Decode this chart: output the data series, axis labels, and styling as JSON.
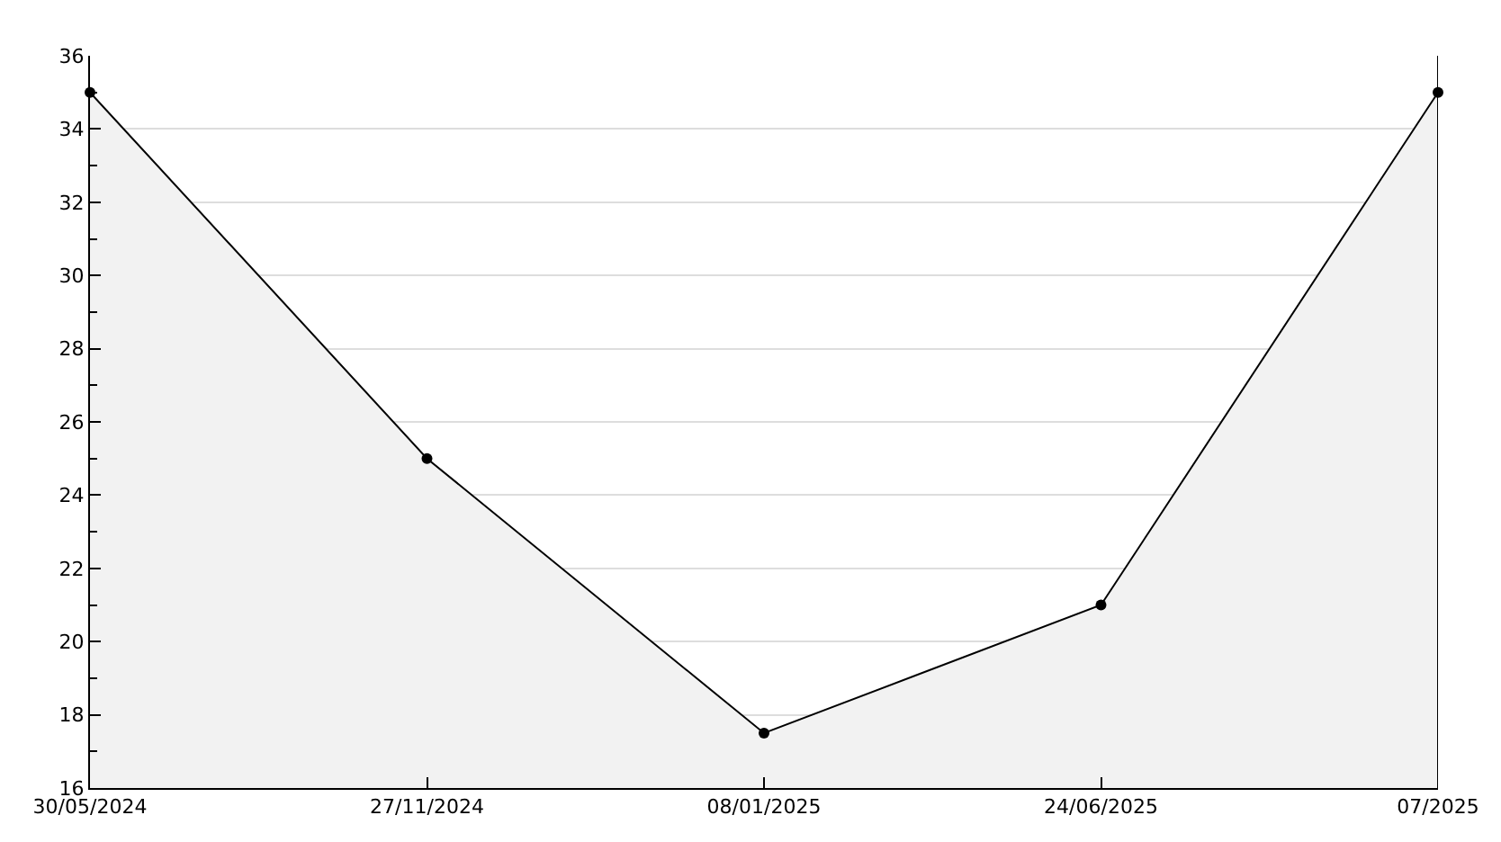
{
  "chart_data": {
    "type": "area",
    "categories": [
      "30/05/2024",
      "27/11/2024",
      "08/01/2025",
      "24/06/2025",
      "07/2025"
    ],
    "series": [
      {
        "color": "#000000",
        "values": [
          35,
          25,
          17.5,
          21,
          35
        ]
      }
    ],
    "ylim": [
      16,
      36
    ],
    "yticks": [
      16,
      {
        "value": 17,
        "label": null
      },
      18,
      {
        "value": 19,
        "label": null
      },
      20,
      {
        "value": 21,
        "label": null
      },
      22,
      {
        "value": 23,
        "label": null
      },
      24,
      {
        "value": 25,
        "label": null
      },
      26,
      {
        "value": 27,
        "label": null
      },
      28,
      {
        "value": 29,
        "label": null
      },
      30,
      {
        "value": 31,
        "label": null
      },
      32,
      {
        "value": 33,
        "label": null
      },
      34,
      {
        "value": 35,
        "label": null
      },
      36
    ],
    "grid": "y",
    "marker": "circle",
    "legend": false
  }
}
